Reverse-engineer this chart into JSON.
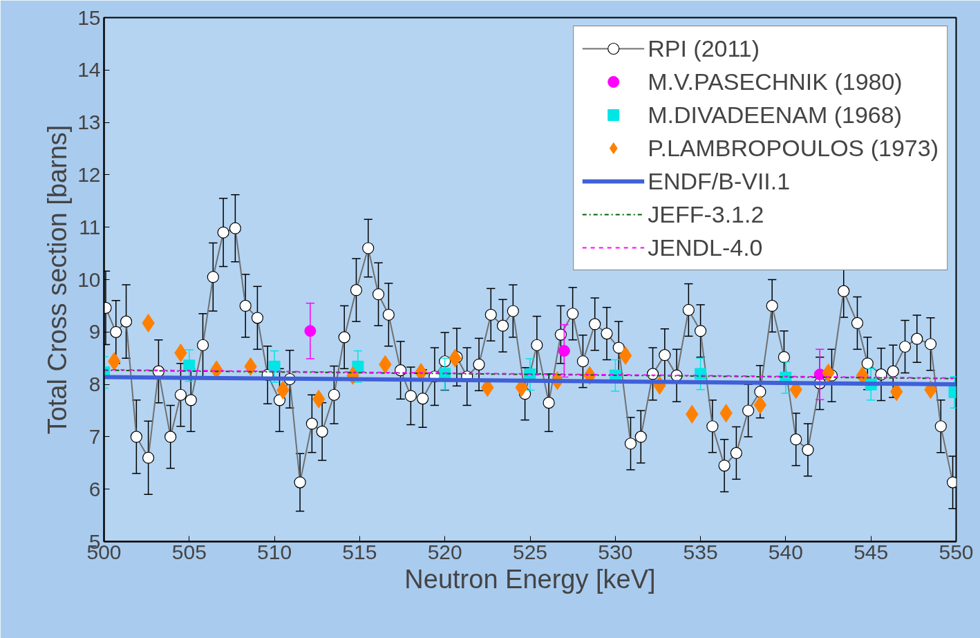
{
  "chart_data": {
    "type": "scatter",
    "xlabel": "Neutron Energy [keV]",
    "ylabel": "Total Cross section [barns]",
    "xlim": [
      500,
      550
    ],
    "xticks": [
      500,
      505,
      510,
      515,
      520,
      525,
      530,
      535,
      540,
      545,
      550
    ],
    "ylim": [
      5,
      15
    ],
    "yticks": [
      5,
      6,
      7,
      8,
      9,
      10,
      11,
      12,
      13,
      14,
      15
    ],
    "grid": false,
    "legend": "top right",
    "series": [
      {
        "name": "RPI (2011)",
        "type": "line",
        "marker": "circle",
        "line_style": "solid",
        "color": "#707070",
        "x": [
          500.1,
          500.7,
          501.3,
          501.9,
          502.6,
          503.2,
          503.9,
          504.5,
          505.1,
          505.8,
          506.4,
          507.0,
          507.7,
          508.3,
          509.0,
          509.6,
          510.3,
          510.9,
          511.5,
          512.2,
          512.8,
          513.5,
          514.1,
          514.8,
          515.5,
          516.1,
          516.7,
          517.4,
          518.0,
          518.7,
          519.4,
          520.0,
          520.7,
          521.3,
          522.0,
          522.7,
          523.4,
          524.0,
          524.7,
          525.4,
          526.1,
          526.8,
          527.5,
          528.1,
          528.8,
          529.5,
          530.2,
          530.9,
          531.5,
          532.2,
          532.9,
          533.6,
          534.3,
          535.0,
          535.7,
          536.4,
          537.1,
          537.8,
          538.5,
          539.2,
          539.9,
          540.6,
          541.3,
          542.0,
          542.7,
          543.4,
          544.2,
          544.8,
          545.6,
          546.3,
          547.0,
          547.7,
          548.5,
          549.1,
          549.8
        ],
        "values": [
          9.46,
          9.0,
          9.2,
          7.0,
          6.6,
          8.25,
          7.0,
          7.8,
          7.7,
          8.75,
          10.05,
          10.9,
          10.98,
          9.5,
          9.27,
          8.18,
          7.7,
          8.1,
          6.13,
          7.25,
          7.1,
          7.8,
          8.9,
          9.8,
          10.6,
          9.72,
          9.33,
          8.27,
          7.78,
          7.73,
          8.15,
          8.44,
          8.52,
          8.15,
          8.38,
          9.33,
          9.12,
          9.4,
          7.82,
          8.75,
          7.65,
          8.95,
          9.35,
          8.44,
          9.15,
          8.97,
          8.7,
          6.87,
          7.0,
          8.2,
          8.56,
          8.17,
          9.42,
          9.02,
          7.2,
          6.45,
          6.69,
          7.5,
          7.86,
          9.5,
          8.52,
          6.95,
          6.75,
          8.02,
          8.17,
          9.78,
          9.17,
          8.4,
          8.19,
          8.25,
          8.72,
          8.87,
          8.77,
          7.2,
          6.13
        ],
        "errors": [
          0.7,
          0.6,
          0.7,
          0.7,
          0.7,
          0.6,
          0.6,
          0.6,
          0.6,
          0.6,
          0.65,
          0.65,
          0.64,
          0.6,
          0.6,
          0.55,
          0.6,
          0.55,
          0.55,
          0.55,
          0.55,
          0.55,
          0.6,
          0.6,
          0.55,
          0.6,
          0.6,
          0.55,
          0.55,
          0.55,
          0.55,
          0.55,
          0.55,
          0.55,
          0.5,
          0.5,
          0.5,
          0.5,
          0.5,
          0.55,
          0.55,
          0.55,
          0.5,
          0.5,
          0.5,
          0.5,
          0.5,
          0.5,
          0.5,
          0.5,
          0.5,
          0.5,
          0.5,
          0.5,
          0.5,
          0.5,
          0.5,
          0.5,
          0.5,
          0.5,
          0.5,
          0.5,
          0.5,
          0.5,
          0.5,
          0.5,
          0.5,
          0.5,
          0.5,
          0.5,
          0.5,
          0.45,
          0.5,
          0.5,
          0.5
        ]
      },
      {
        "name": "M.V.PASECHNIK (1980)",
        "marker": "circle",
        "color": "#ff00ff",
        "x": [
          512.1,
          527.0,
          542.0
        ],
        "values": [
          9.02,
          8.64,
          8.19
        ],
        "errors": [
          0.53,
          0.5,
          0.48
        ]
      },
      {
        "name": "M.DIVADEENAM (1968)",
        "marker": "square",
        "color": "#00e5e5",
        "x": [
          500,
          505,
          510,
          514.9,
          520,
          525,
          530,
          535,
          540,
          545,
          549.9
        ],
        "values": [
          8.23,
          8.36,
          8.34,
          8.34,
          8.2,
          8.19,
          8.17,
          8.2,
          8.13,
          8.0,
          7.85
        ],
        "errors": [
          0.3,
          0.3,
          0.3,
          0.3,
          0.3,
          0.3,
          0.3,
          0.3,
          0.3,
          0.3,
          0.3
        ]
      },
      {
        "name": "P.LAMBROPOULOS (1973)",
        "marker": "diamond",
        "color": "#ff8000",
        "x": [
          500.6,
          502.6,
          504.5,
          506.6,
          508.6,
          510.5,
          512.6,
          514.6,
          516.5,
          518.6,
          520.6,
          522.5,
          524.5,
          526.6,
          528.5,
          530.6,
          532.6,
          534.5,
          536.5,
          538.5,
          540.6,
          542.5,
          544.5,
          546.5,
          548.5
        ],
        "values": [
          8.44,
          9.17,
          8.6,
          8.28,
          8.34,
          7.89,
          7.72,
          8.17,
          8.38,
          8.23,
          8.5,
          7.94,
          7.94,
          8.07,
          8.17,
          8.55,
          7.98,
          7.43,
          7.45,
          7.61,
          7.9,
          8.22,
          8.17,
          7.86,
          7.9
        ]
      },
      {
        "name": "ENDF/B-VII.1",
        "type": "line",
        "marker": "none",
        "line_style": "solid",
        "color": "#4060d8",
        "x": [
          500,
          550
        ],
        "values": [
          8.14,
          8.0
        ]
      },
      {
        "name": "JEFF-3.1.2",
        "type": "line",
        "marker": "none",
        "line_style": "dashdot",
        "color": "#006000",
        "x": [
          500,
          550
        ],
        "values": [
          8.27,
          8.11
        ]
      },
      {
        "name": "JENDL-4.0",
        "type": "line",
        "marker": "none",
        "line_style": "dashed",
        "color": "#ff00ff",
        "x": [
          500,
          550
        ],
        "values": [
          8.28,
          8.12
        ]
      }
    ]
  }
}
